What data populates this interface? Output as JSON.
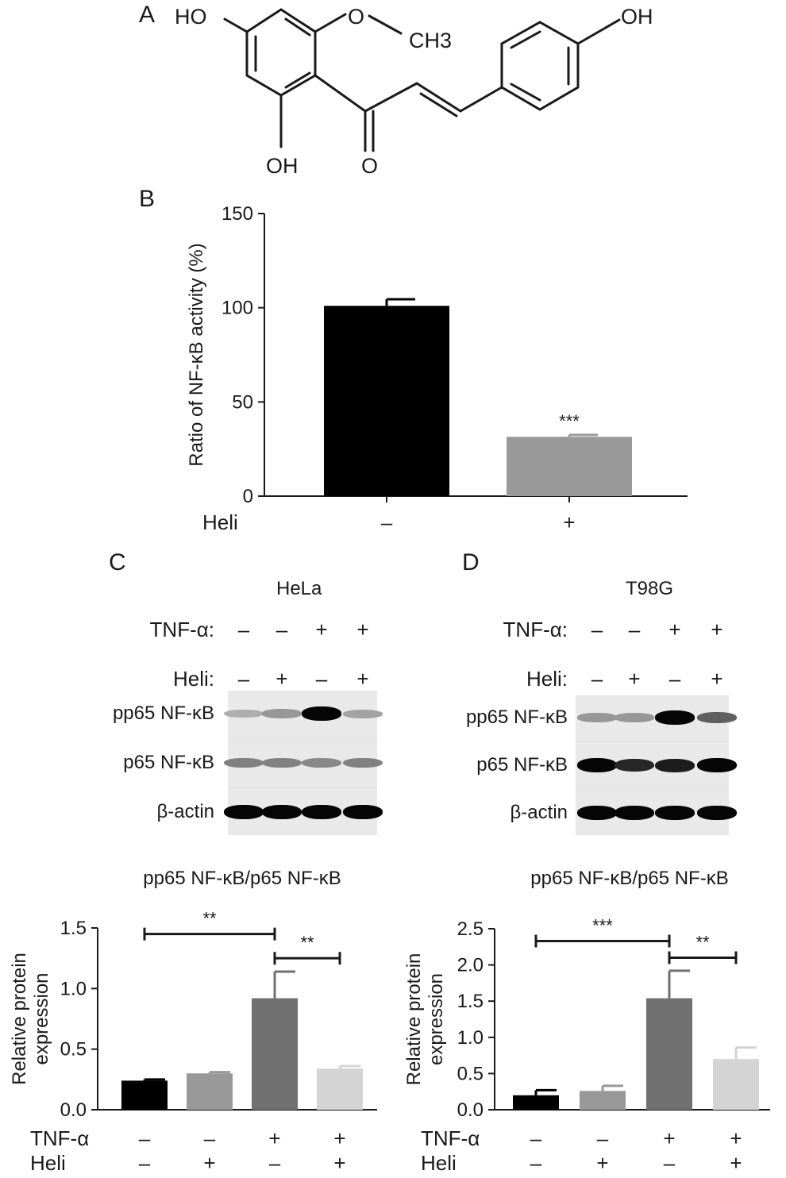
{
  "panels": {
    "a": "A",
    "b": "B",
    "c": "C",
    "d": "D"
  },
  "structure": {
    "labels": [
      "HO",
      "O",
      "CH3",
      "OH",
      "OH",
      "O"
    ]
  },
  "symbols": {
    "minus": "–",
    "plus": "+"
  },
  "blots": {
    "c": {
      "cell_line": "HeLa",
      "tnf_label": "TNF-α:",
      "heli_label": "Heli:",
      "tnf": [
        "–",
        "–",
        "+",
        "+"
      ],
      "heli": [
        "–",
        "+",
        "–",
        "+"
      ],
      "rows": [
        "pp65 NF-κB",
        "p65 NF-κB",
        "β-actin"
      ],
      "band_intensity": {
        "pp65": [
          0.25,
          0.35,
          1.0,
          0.3
        ],
        "p65": [
          0.45,
          0.45,
          0.42,
          0.45
        ],
        "actin": [
          1.0,
          1.0,
          1.0,
          1.0
        ]
      }
    },
    "d": {
      "cell_line": "T98G",
      "tnf_label": "TNF-α:",
      "heli_label": "Heli:",
      "tnf": [
        "–",
        "–",
        "+",
        "+"
      ],
      "heli": [
        "–",
        "+",
        "–",
        "+"
      ],
      "rows": [
        "pp65 NF-κB",
        "p65 NF-κB",
        "β-actin"
      ],
      "band_intensity": {
        "pp65": [
          0.35,
          0.35,
          1.0,
          0.6
        ],
        "p65": [
          1.0,
          0.85,
          0.9,
          1.0
        ],
        "actin": [
          1.0,
          1.0,
          1.0,
          1.0
        ]
      }
    }
  },
  "chart_data": [
    {
      "id": "B",
      "type": "bar",
      "title": "",
      "ylabel": "Ratio of NF-κB activity (%)",
      "ylim": [
        0,
        150
      ],
      "yticks": [
        "0",
        "50",
        "100",
        "150"
      ],
      "row_labels": [
        "Heli"
      ],
      "categories": [
        [
          "–"
        ],
        [
          "+"
        ]
      ],
      "values": [
        101,
        31.5
      ],
      "errors": [
        3.5,
        1.0
      ],
      "colors": [
        "#000000",
        "#999999"
      ],
      "annotations": [
        {
          "bar": 1,
          "text": "***"
        }
      ],
      "brackets": []
    },
    {
      "id": "C",
      "type": "bar",
      "title": "pp65 NF-κB/p65 NF-κB",
      "ylabel": "Relative protein expression",
      "ylim": [
        0,
        1.5
      ],
      "yticks": [
        "0.0",
        "0.5",
        "1.0",
        "1.5"
      ],
      "row_labels": [
        "TNF-α",
        "Heli"
      ],
      "categories": [
        [
          "–",
          "–"
        ],
        [
          "–",
          "+"
        ],
        [
          "+",
          "–"
        ],
        [
          "+",
          "+"
        ]
      ],
      "values": [
        0.24,
        0.3,
        0.92,
        0.34
      ],
      "errors": [
        0.01,
        0.01,
        0.22,
        0.02
      ],
      "colors": [
        "#000000",
        "#999999",
        "#707070",
        "#d4d4d4"
      ],
      "annotations": [],
      "brackets": [
        {
          "from": 0,
          "to": 2,
          "y": 1.45,
          "text": "**"
        },
        {
          "from": 2,
          "to": 3,
          "y": 1.25,
          "text": "**"
        }
      ]
    },
    {
      "id": "D",
      "type": "bar",
      "title": "pp65 NF-κB/p65 NF-κB",
      "ylabel": "Relative protein expression",
      "ylim": [
        0,
        2.5
      ],
      "yticks": [
        "0.0",
        "0.5",
        "1.0",
        "1.5",
        "2.0",
        "2.5"
      ],
      "row_labels": [
        "TNF-α",
        "Heli"
      ],
      "categories": [
        [
          "–",
          "–"
        ],
        [
          "–",
          "+"
        ],
        [
          "+",
          "–"
        ],
        [
          "+",
          "+"
        ]
      ],
      "values": [
        0.2,
        0.26,
        1.54,
        0.7
      ],
      "errors": [
        0.07,
        0.07,
        0.38,
        0.16
      ],
      "colors": [
        "#000000",
        "#999999",
        "#707070",
        "#d4d4d4"
      ],
      "annotations": [],
      "brackets": [
        {
          "from": 0,
          "to": 2,
          "y": 2.33,
          "text": "***"
        },
        {
          "from": 2,
          "to": 3,
          "y": 2.1,
          "text": "**"
        }
      ]
    }
  ]
}
